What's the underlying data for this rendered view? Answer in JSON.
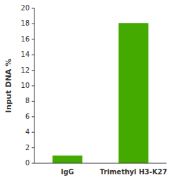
{
  "chart_data": {
    "type": "bar",
    "categories": [
      "IgG",
      "Trimethyl H3-K27"
    ],
    "values": [
      1.0,
      18.1
    ],
    "colors": [
      "#44aa00",
      "#44aa00"
    ],
    "ylabel": "Input DNA %",
    "ylim": [
      0,
      20
    ],
    "yticks": [
      0,
      2,
      4,
      6,
      8,
      10,
      12,
      14,
      16,
      18,
      20
    ],
    "grid": false
  }
}
